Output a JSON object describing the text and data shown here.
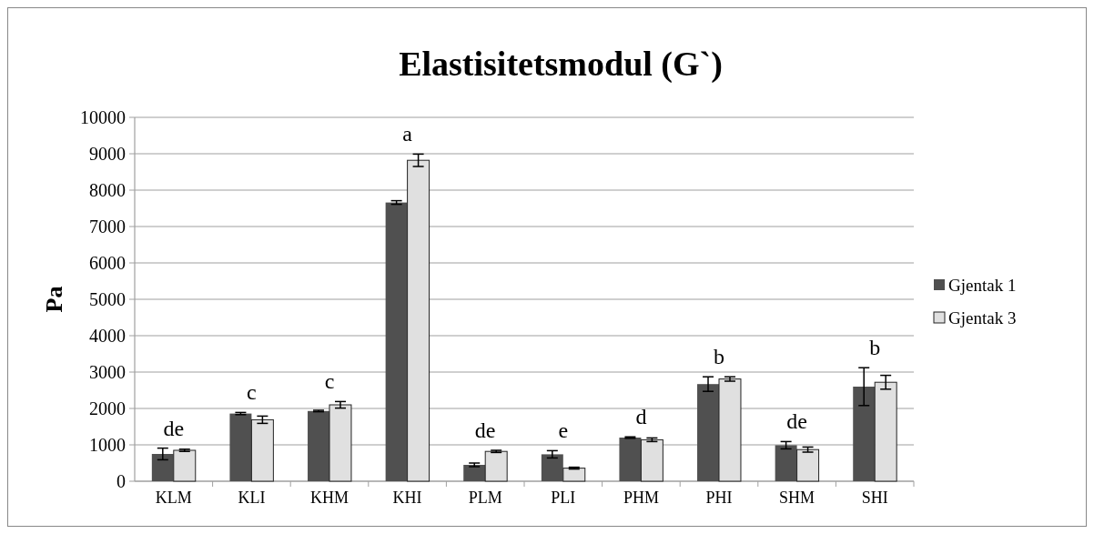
{
  "chart_data": {
    "type": "bar",
    "title": "Elastisitetsmodul (G`)",
    "ylabel": "Pa",
    "categories": [
      "KLM",
      "KLI",
      "KHM",
      "KHI",
      "PLM",
      "PLI",
      "PHM",
      "PHI",
      "SHM",
      "SHI"
    ],
    "series": [
      {
        "name": "Gjentak 1",
        "color": "#505050",
        "values": [
          750,
          1860,
          1930,
          7660,
          450,
          740,
          1200,
          2670,
          990,
          2600
        ],
        "errors": [
          160,
          30,
          20,
          50,
          50,
          100,
          20,
          200,
          100,
          520
        ]
      },
      {
        "name": "Gjentak 3",
        "color": "#e0e0e0",
        "values": [
          850,
          1690,
          2100,
          8820,
          820,
          360,
          1140,
          2810,
          870,
          2720
        ],
        "errors": [
          30,
          100,
          90,
          170,
          30,
          25,
          50,
          60,
          70,
          190
        ]
      }
    ],
    "ylim": [
      0,
      10000
    ],
    "yticks": [
      0,
      1000,
      2000,
      3000,
      4000,
      5000,
      6000,
      7000,
      8000,
      9000,
      10000
    ],
    "grid": "y",
    "legend": "right",
    "annotations": [
      "de",
      "c",
      "c",
      "a",
      "de",
      "e",
      "d",
      "b",
      "de",
      "b"
    ]
  }
}
